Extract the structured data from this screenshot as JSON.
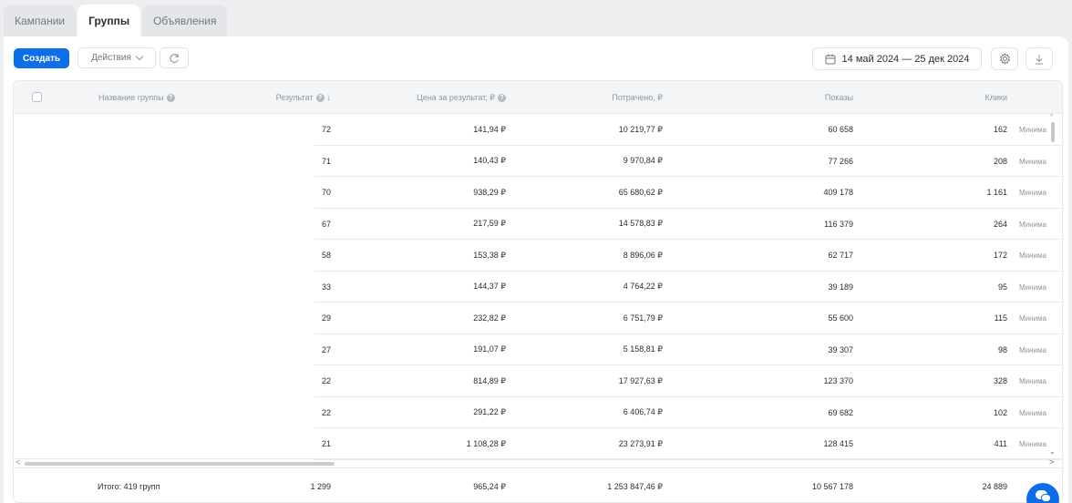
{
  "tabs": [
    {
      "label": "Кампании",
      "active": false
    },
    {
      "label": "Группы",
      "active": true
    },
    {
      "label": "Объявления",
      "active": false
    }
  ],
  "toolbar": {
    "create_label": "Создать",
    "actions_label": "Действия",
    "date_range": "14 май 2024 — 25 дек 2024"
  },
  "columns": {
    "name": "Название группы",
    "result": "Результат",
    "result_sort": "↓",
    "cost_per_result": "Цена за результат, ₽",
    "spent": "Потрачено, ₽",
    "impressions": "Показы",
    "clicks": "Клики"
  },
  "rows": [
    {
      "result": "72",
      "cost": "141,94 ₽",
      "spent": "10 219,77 ₽",
      "impressions": "60 658",
      "clicks": "162",
      "extra": "Минима"
    },
    {
      "result": "71",
      "cost": "140,43 ₽",
      "spent": "9 970,84 ₽",
      "impressions": "77 266",
      "clicks": "208",
      "extra": "Минима"
    },
    {
      "result": "70",
      "cost": "938,29 ₽",
      "spent": "65 680,62 ₽",
      "impressions": "409 178",
      "clicks": "1 161",
      "extra": "Минима"
    },
    {
      "result": "67",
      "cost": "217,59 ₽",
      "spent": "14 578,83 ₽",
      "impressions": "116 379",
      "clicks": "264",
      "extra": "Минима"
    },
    {
      "result": "58",
      "cost": "153,38 ₽",
      "spent": "8 896,06 ₽",
      "impressions": "62 717",
      "clicks": "172",
      "extra": "Минима"
    },
    {
      "result": "33",
      "cost": "144,37 ₽",
      "spent": "4 764,22 ₽",
      "impressions": "39 189",
      "clicks": "95",
      "extra": "Минима"
    },
    {
      "result": "29",
      "cost": "232,82 ₽",
      "spent": "6 751,79 ₽",
      "impressions": "55 600",
      "clicks": "115",
      "extra": "Минима"
    },
    {
      "result": "27",
      "cost": "191,07 ₽",
      "spent": "5 158,81 ₽",
      "impressions": "39 307",
      "clicks": "98",
      "extra": "Минима"
    },
    {
      "result": "22",
      "cost": "814,89 ₽",
      "spent": "17 927,63 ₽",
      "impressions": "123 370",
      "clicks": "328",
      "extra": "Минима"
    },
    {
      "result": "22",
      "cost": "291,22 ₽",
      "spent": "6 406,74 ₽",
      "impressions": "69 682",
      "clicks": "102",
      "extra": "Минима"
    },
    {
      "result": "21",
      "cost": "1 108,28 ₽",
      "spent": "23 273,91 ₽",
      "impressions": "128 415",
      "clicks": "411",
      "extra": "Минима"
    }
  ],
  "totals": {
    "label": "Итого: 419 групп",
    "result": "1 299",
    "cost": "965,24 ₽",
    "spent": "1 253 847,46 ₽",
    "impressions": "10 567 178",
    "clicks": "24 889"
  },
  "icons": {
    "refresh": "refresh-icon",
    "calendar": "calendar-icon",
    "settings": "gear-icon",
    "download": "download-icon",
    "chat": "chat-icon"
  },
  "colors": {
    "accent": "#0d6ee8",
    "background": "#edeef0",
    "header_bg": "#f4f5f7"
  }
}
